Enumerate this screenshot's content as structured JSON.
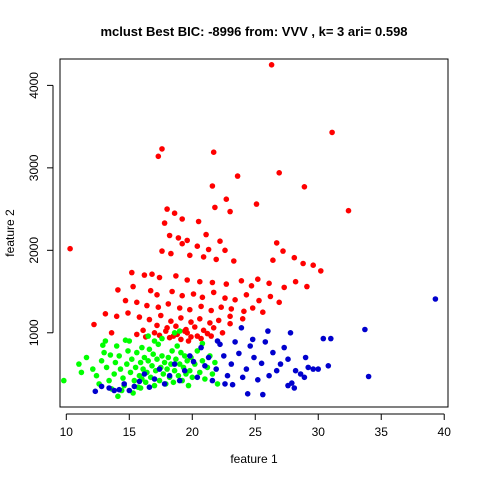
{
  "chart_data": {
    "type": "scatter",
    "title": "mclust Best BIC: -8996 from: VVV , k= 3 ari= 0.598",
    "xlabel": "feature 1",
    "ylabel": "feature 2",
    "xlim": [
      9.5,
      40.3
    ],
    "ylim": [
      100,
      4320
    ],
    "xticks": [
      10,
      15,
      20,
      25,
      30,
      35,
      40
    ],
    "yticks": [
      1000,
      2000,
      3000,
      4000
    ],
    "grid": false,
    "legend": "none",
    "series": [
      {
        "color": "#ff0000",
        "points": [
          [
            26.3,
            4250
          ],
          [
            31.1,
            3430
          ],
          [
            17.6,
            3230
          ],
          [
            17.3,
            3140
          ],
          [
            21.7,
            3190
          ],
          [
            26.9,
            2940
          ],
          [
            23.6,
            2900
          ],
          [
            21.6,
            2780
          ],
          [
            28.9,
            2770
          ],
          [
            32.4,
            2480
          ],
          [
            25.1,
            2560
          ],
          [
            18.0,
            2500
          ],
          [
            22.7,
            2620
          ],
          [
            21.8,
            2520
          ],
          [
            23.0,
            2470
          ],
          [
            10.3,
            2020
          ],
          [
            18.6,
            2450
          ],
          [
            19.2,
            2380
          ],
          [
            20.5,
            2350
          ],
          [
            17.8,
            2330
          ],
          [
            18.2,
            2180
          ],
          [
            18.9,
            2150
          ],
          [
            19.6,
            2120
          ],
          [
            21.1,
            2190
          ],
          [
            22.2,
            2110
          ],
          [
            19.2,
            2080
          ],
          [
            20.4,
            2050
          ],
          [
            21.3,
            2010
          ],
          [
            22.6,
            2000
          ],
          [
            17.6,
            1990
          ],
          [
            18.3,
            1960
          ],
          [
            19.8,
            1940
          ],
          [
            20.9,
            1920
          ],
          [
            21.9,
            1890
          ],
          [
            23.3,
            1870
          ],
          [
            26.7,
            2090
          ],
          [
            27.2,
            1990
          ],
          [
            28.1,
            1910
          ],
          [
            28.8,
            1840
          ],
          [
            29.6,
            1820
          ],
          [
            30.2,
            1750
          ],
          [
            26.4,
            1880
          ],
          [
            15.2,
            1730
          ],
          [
            16.2,
            1700
          ],
          [
            16.8,
            1710
          ],
          [
            17.4,
            1670
          ],
          [
            18.7,
            1690
          ],
          [
            19.6,
            1640
          ],
          [
            20.6,
            1620
          ],
          [
            21.6,
            1610
          ],
          [
            22.7,
            1590
          ],
          [
            23.9,
            1630
          ],
          [
            24.7,
            1570
          ],
          [
            25.2,
            1650
          ],
          [
            26.1,
            1600
          ],
          [
            27.3,
            1550
          ],
          [
            28.2,
            1620
          ],
          [
            29.1,
            1560
          ],
          [
            14.1,
            1520
          ],
          [
            15.3,
            1560
          ],
          [
            16.7,
            1510
          ],
          [
            17.2,
            1460
          ],
          [
            18.4,
            1500
          ],
          [
            19.2,
            1450
          ],
          [
            20.1,
            1470
          ],
          [
            20.8,
            1430
          ],
          [
            21.7,
            1490
          ],
          [
            22.6,
            1420
          ],
          [
            23.4,
            1400
          ],
          [
            24.3,
            1460
          ],
          [
            25.3,
            1390
          ],
          [
            26.2,
            1440
          ],
          [
            26.9,
            1370
          ],
          [
            14.7,
            1390
          ],
          [
            15.6,
            1370
          ],
          [
            16.4,
            1330
          ],
          [
            17.3,
            1310
          ],
          [
            18.1,
            1350
          ],
          [
            19.0,
            1300
          ],
          [
            19.8,
            1280
          ],
          [
            20.7,
            1320
          ],
          [
            21.5,
            1270
          ],
          [
            22.3,
            1310
          ],
          [
            23.1,
            1290
          ],
          [
            24.1,
            1260
          ],
          [
            24.8,
            1300
          ],
          [
            25.6,
            1250
          ],
          [
            13.1,
            1230
          ],
          [
            14.0,
            1200
          ],
          [
            14.9,
            1240
          ],
          [
            15.8,
            1190
          ],
          [
            16.6,
            1160
          ],
          [
            17.5,
            1210
          ],
          [
            18.3,
            1140
          ],
          [
            19.1,
            1180
          ],
          [
            19.9,
            1130
          ],
          [
            20.6,
            1170
          ],
          [
            21.4,
            1120
          ],
          [
            22.1,
            1150
          ],
          [
            23.0,
            1110
          ],
          [
            24.0,
            1170
          ],
          [
            12.2,
            1100
          ],
          [
            17.2,
            1090
          ],
          [
            18.0,
            1060
          ],
          [
            18.7,
            1080
          ],
          [
            19.5,
            1040
          ],
          [
            20.2,
            1070
          ],
          [
            20.9,
            1030
          ],
          [
            21.7,
            1060
          ],
          [
            16.1,
            1030
          ],
          [
            17.0,
            1000
          ],
          [
            17.9,
            1020
          ],
          [
            18.8,
            980
          ],
          [
            19.6,
            1000
          ],
          [
            20.4,
            960
          ],
          [
            21.2,
            990
          ],
          [
            15.6,
            980
          ],
          [
            16.3,
            950
          ],
          [
            17.4,
            970
          ],
          [
            18.2,
            940
          ],
          [
            19.1,
            920
          ],
          [
            19.9,
            950
          ],
          [
            20.7,
            930
          ],
          [
            21.5,
            960
          ],
          [
            13.6,
            1000
          ],
          [
            22.4,
            1000
          ],
          [
            19.4,
            1020
          ],
          [
            19.7,
            900
          ],
          [
            18.5,
            960
          ],
          [
            23.0,
            1200
          ]
        ]
      },
      {
        "color": "#00ff00",
        "points": [
          [
            9.8,
            420
          ],
          [
            11.2,
            520
          ],
          [
            11.0,
            620
          ],
          [
            11.6,
            700
          ],
          [
            12.1,
            560
          ],
          [
            12.4,
            480
          ],
          [
            12.8,
            660
          ],
          [
            13.0,
            760
          ],
          [
            13.2,
            580
          ],
          [
            13.4,
            420
          ],
          [
            13.6,
            320
          ],
          [
            13.8,
            500
          ],
          [
            13.9,
            640
          ],
          [
            14.0,
            840
          ],
          [
            14.2,
            720
          ],
          [
            14.3,
            560
          ],
          [
            14.5,
            450
          ],
          [
            14.6,
            360
          ],
          [
            14.8,
            620
          ],
          [
            14.9,
            780
          ],
          [
            15.0,
            900
          ],
          [
            15.1,
            520
          ],
          [
            15.2,
            680
          ],
          [
            15.4,
            420
          ],
          [
            15.5,
            580
          ],
          [
            15.6,
            760
          ],
          [
            15.7,
            340
          ],
          [
            15.8,
            480
          ],
          [
            15.9,
            640
          ],
          [
            16.0,
            820
          ],
          [
            16.1,
            560
          ],
          [
            16.2,
            700
          ],
          [
            16.3,
            400
          ],
          [
            16.4,
            520
          ],
          [
            16.5,
            660
          ],
          [
            16.6,
            800
          ],
          [
            16.7,
            460
          ],
          [
            16.8,
            600
          ],
          [
            16.9,
            740
          ],
          [
            17.0,
            360
          ],
          [
            17.1,
            540
          ],
          [
            17.2,
            680
          ],
          [
            17.3,
            860
          ],
          [
            17.4,
            420
          ],
          [
            17.5,
            580
          ],
          [
            17.6,
            720
          ],
          [
            17.7,
            500
          ],
          [
            17.8,
            640
          ],
          [
            17.9,
            380
          ],
          [
            18.0,
            560
          ],
          [
            18.1,
            700
          ],
          [
            18.2,
            460
          ],
          [
            18.3,
            620
          ],
          [
            18.4,
            780
          ],
          [
            18.5,
            400
          ],
          [
            18.6,
            540
          ],
          [
            18.7,
            680
          ],
          [
            18.8,
            840
          ],
          [
            18.9,
            480
          ],
          [
            19.0,
            620
          ],
          [
            19.1,
            760
          ],
          [
            19.2,
            420
          ],
          [
            19.3,
            580
          ],
          [
            19.4,
            720
          ],
          [
            19.5,
            500
          ],
          [
            19.6,
            660
          ],
          [
            19.7,
            360
          ],
          [
            19.8,
            540
          ],
          [
            19.9,
            700
          ],
          [
            20.0,
            460
          ],
          [
            20.2,
            620
          ],
          [
            20.4,
            780
          ],
          [
            20.6,
            520
          ],
          [
            20.8,
            660
          ],
          [
            21.0,
            440
          ],
          [
            21.2,
            580
          ],
          [
            21.4,
            720
          ],
          [
            21.6,
            500
          ],
          [
            21.8,
            640
          ],
          [
            22.0,
            380
          ],
          [
            14.4,
            300
          ],
          [
            14.1,
            230
          ],
          [
            15.3,
            270
          ],
          [
            12.6,
            380
          ],
          [
            13.1,
            900
          ],
          [
            19.0,
            1020
          ],
          [
            16.5,
            960
          ],
          [
            17.6,
            930
          ],
          [
            13.5,
            730
          ],
          [
            16.0,
            440
          ],
          [
            14.7,
            910
          ],
          [
            18.6,
            1000
          ],
          [
            15.9,
            330
          ],
          [
            17.0,
            900
          ],
          [
            20.8,
            870
          ],
          [
            12.9,
            850
          ]
        ]
      },
      {
        "color": "#0000cd",
        "points": [
          [
            39.3,
            1410
          ],
          [
            33.7,
            1040
          ],
          [
            34.0,
            470
          ],
          [
            31.0,
            930
          ],
          [
            30.4,
            930
          ],
          [
            30.0,
            560
          ],
          [
            29.6,
            560
          ],
          [
            29.2,
            580
          ],
          [
            28.9,
            460
          ],
          [
            28.6,
            500
          ],
          [
            28.2,
            540
          ],
          [
            27.9,
            390
          ],
          [
            27.6,
            680
          ],
          [
            27.3,
            820
          ],
          [
            27.0,
            620
          ],
          [
            26.7,
            540
          ],
          [
            26.4,
            760
          ],
          [
            26.1,
            480
          ],
          [
            25.8,
            890
          ],
          [
            25.5,
            630
          ],
          [
            25.2,
            430
          ],
          [
            24.9,
            700
          ],
          [
            24.6,
            840
          ],
          [
            24.3,
            560
          ],
          [
            24.0,
            460
          ],
          [
            23.7,
            750
          ],
          [
            23.4,
            890
          ],
          [
            23.1,
            620
          ],
          [
            22.8,
            480
          ],
          [
            22.5,
            720
          ],
          [
            22.2,
            860
          ],
          [
            21.9,
            560
          ],
          [
            21.6,
            420
          ],
          [
            21.3,
            700
          ],
          [
            21.0,
            600
          ],
          [
            20.7,
            820
          ],
          [
            20.4,
            460
          ],
          [
            20.1,
            650
          ],
          [
            19.8,
            720
          ],
          [
            19.4,
            540
          ],
          [
            19.0,
            420
          ],
          [
            18.6,
            620
          ],
          [
            18.2,
            480
          ],
          [
            17.8,
            380
          ],
          [
            17.4,
            560
          ],
          [
            17.0,
            440
          ],
          [
            16.6,
            340
          ],
          [
            16.2,
            500
          ],
          [
            15.8,
            410
          ],
          [
            15.4,
            350
          ],
          [
            15.0,
            300
          ],
          [
            14.6,
            380
          ],
          [
            14.2,
            310
          ],
          [
            13.8,
            300
          ],
          [
            13.4,
            330
          ],
          [
            12.8,
            350
          ],
          [
            12.3,
            290
          ],
          [
            25.6,
            250
          ],
          [
            27.6,
            360
          ],
          [
            28.1,
            330
          ],
          [
            24.4,
            260
          ],
          [
            23.2,
            370
          ],
          [
            22.6,
            380
          ],
          [
            26.0,
            1020
          ],
          [
            27.8,
            1000
          ],
          [
            29.0,
            700
          ],
          [
            30.8,
            600
          ],
          [
            24.8,
            920
          ],
          [
            23.9,
            1060
          ],
          [
            22.0,
            900
          ]
        ]
      }
    ]
  }
}
